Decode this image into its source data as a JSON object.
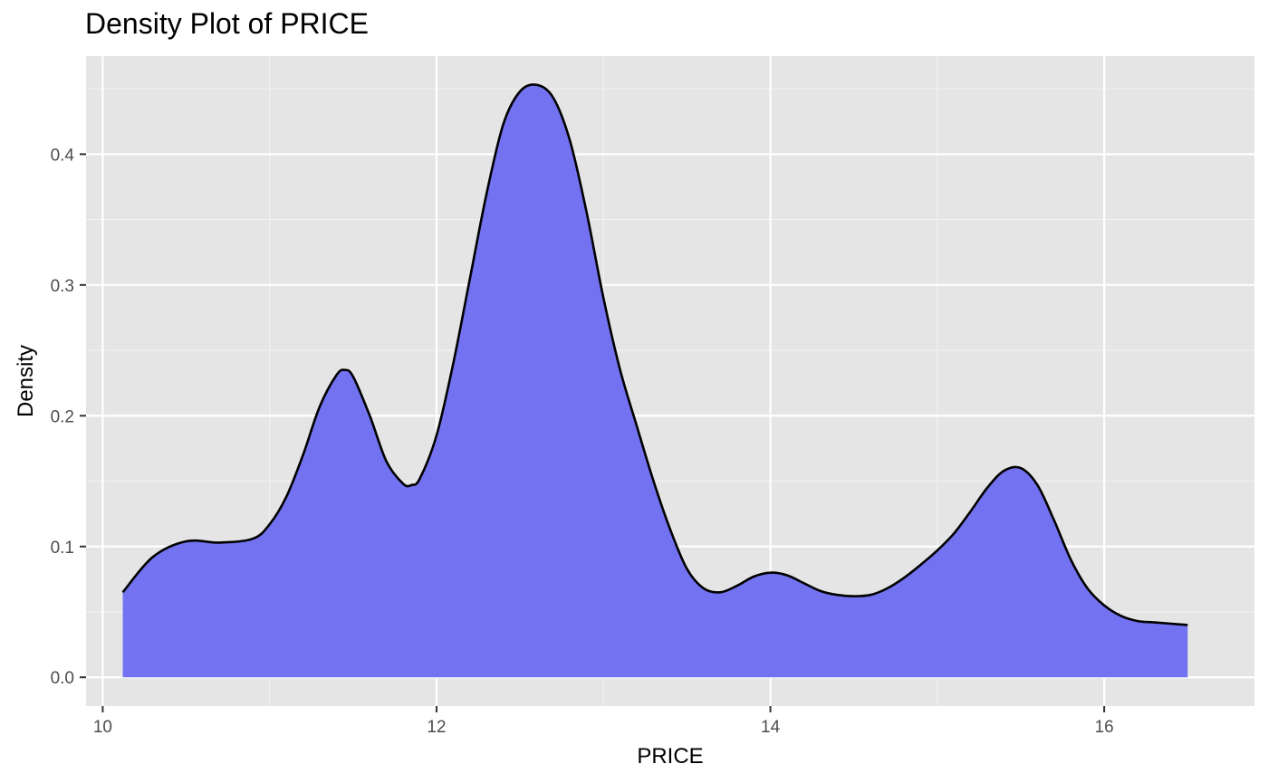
{
  "chart_data": {
    "type": "area",
    "title": "Density Plot of PRICE",
    "xlabel": "PRICE",
    "ylabel": "Density",
    "xlim": [
      9.9,
      16.9
    ],
    "ylim": [
      -0.022,
      0.475
    ],
    "x_ticks": [
      10,
      12,
      14,
      16
    ],
    "y_ticks": [
      0.0,
      0.1,
      0.2,
      0.3,
      0.4
    ],
    "y_tick_labels": [
      "0.0",
      "0.1",
      "0.2",
      "0.3",
      "0.4"
    ],
    "grid": true,
    "legend": "none",
    "fill_color": "#7373f2",
    "line_color": "#000000",
    "panel_color": "#e5e5e5",
    "series": [
      {
        "x": [
          10.12,
          10.3,
          10.5,
          10.7,
          10.9,
          11.0,
          11.1,
          11.2,
          11.3,
          11.4,
          11.45,
          11.5,
          11.6,
          11.7,
          11.8,
          11.85,
          11.9,
          12.0,
          12.1,
          12.2,
          12.3,
          12.4,
          12.5,
          12.6,
          12.7,
          12.8,
          12.9,
          13.0,
          13.1,
          13.2,
          13.3,
          13.4,
          13.5,
          13.6,
          13.7,
          13.8,
          13.9,
          14.0,
          14.1,
          14.2,
          14.3,
          14.4,
          14.5,
          14.6,
          14.7,
          14.8,
          14.9,
          15.0,
          15.1,
          15.2,
          15.3,
          15.4,
          15.5,
          15.6,
          15.7,
          15.8,
          15.9,
          16.0,
          16.1,
          16.2,
          16.3,
          16.4,
          16.5
        ],
        "y": [
          0.065,
          0.092,
          0.104,
          0.103,
          0.106,
          0.117,
          0.138,
          0.17,
          0.207,
          0.231,
          0.235,
          0.23,
          0.2,
          0.165,
          0.148,
          0.147,
          0.152,
          0.185,
          0.24,
          0.305,
          0.37,
          0.423,
          0.448,
          0.453,
          0.443,
          0.41,
          0.355,
          0.29,
          0.235,
          0.192,
          0.15,
          0.113,
          0.083,
          0.068,
          0.065,
          0.07,
          0.077,
          0.08,
          0.078,
          0.072,
          0.066,
          0.063,
          0.062,
          0.063,
          0.068,
          0.076,
          0.086,
          0.097,
          0.11,
          0.127,
          0.145,
          0.158,
          0.16,
          0.147,
          0.12,
          0.09,
          0.068,
          0.055,
          0.047,
          0.043,
          0.042,
          0.041,
          0.04
        ]
      }
    ]
  }
}
